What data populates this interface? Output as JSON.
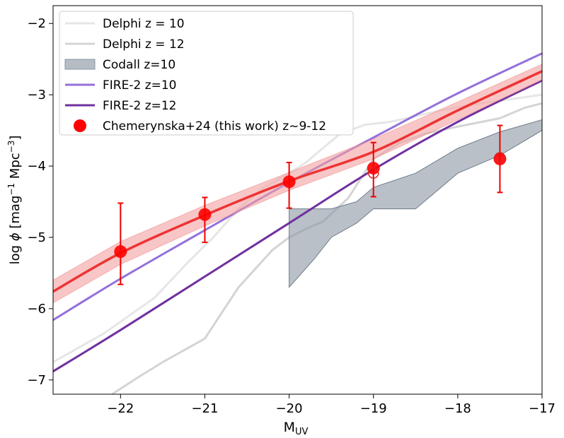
{
  "chart_data": {
    "type": "line",
    "title": "",
    "xlabel": "M",
    "xlabel_sub": "UV",
    "ylabel_prefix": "log ",
    "ylabel_phi": "ϕ",
    "ylabel_open": " [mag",
    "ylabel_sup1": "−1",
    "ylabel_mid": " Mpc",
    "ylabel_sup2": "−3",
    "ylabel_close": "]",
    "xlim": [
      -22.8,
      -17
    ],
    "ylim": [
      -7.2,
      -1.75
    ],
    "xticks": [
      -22,
      -21,
      -20,
      -19,
      -18,
      -17
    ],
    "xtick_labels": [
      "−22",
      "−21",
      "−20",
      "−19",
      "−18",
      "−17"
    ],
    "yticks": [
      -7,
      -6,
      -5,
      -4,
      -3,
      -2
    ],
    "ytick_labels": [
      "−7",
      "−6",
      "−5",
      "−4",
      "−3",
      "−2"
    ],
    "legend_position": "top-left",
    "series": [
      {
        "name": "Delphi z = 10",
        "kind": "line",
        "color": "#e6e6e6",
        "width": 3,
        "x": [
          -22.8,
          -22.2,
          -21.6,
          -21.2,
          -20.9,
          -20.6,
          -20.3,
          -20.0,
          -19.8,
          -19.6,
          -19.4,
          -19.1,
          -18.8,
          -18.5,
          -18.2,
          -17.9,
          -17.6,
          -17.3,
          -17.0
        ],
        "y": [
          -6.75,
          -6.35,
          -5.85,
          -5.35,
          -5.0,
          -4.6,
          -4.3,
          -4.1,
          -3.95,
          -3.75,
          -3.55,
          -3.42,
          -3.38,
          -3.3,
          -3.22,
          -3.15,
          -3.1,
          -3.05,
          -3.0
        ]
      },
      {
        "name": "Delphi z = 12",
        "kind": "line",
        "color": "#d4d4d4",
        "width": 3,
        "x": [
          -22.1,
          -21.8,
          -21.5,
          -21.0,
          -20.6,
          -20.2,
          -20.0,
          -19.8,
          -19.6,
          -19.3,
          -19.0,
          -18.7,
          -18.4,
          -18.1,
          -17.8,
          -17.5,
          -17.2,
          -17.0
        ],
        "y": [
          -7.2,
          -6.97,
          -6.75,
          -6.42,
          -5.7,
          -5.18,
          -5.0,
          -4.88,
          -4.78,
          -4.45,
          -3.9,
          -3.68,
          -3.55,
          -3.47,
          -3.4,
          -3.33,
          -3.18,
          -3.12
        ]
      },
      {
        "name": "Codall z=10",
        "kind": "band",
        "color": "#8a96a3",
        "opacity": 0.6,
        "x": [
          -20.0,
          -19.7,
          -19.5,
          -19.2,
          -19.0,
          -18.5,
          -18.0,
          -17.5,
          -17.0
        ],
        "upper": [
          -4.6,
          -4.6,
          -4.6,
          -4.5,
          -4.3,
          -4.1,
          -3.75,
          -3.52,
          -3.35
        ],
        "lower": [
          -5.7,
          -5.3,
          -5.0,
          -4.8,
          -4.6,
          -4.6,
          -4.1,
          -3.85,
          -3.5
        ]
      },
      {
        "name": "FIRE-2 z=10",
        "kind": "curve",
        "color": "#9370db",
        "width": 3,
        "x": [
          -22.8,
          -22.0,
          -21.0,
          -20.0,
          -19.0,
          -18.0,
          -17.0
        ],
        "y": [
          -6.16,
          -5.58,
          -4.9,
          -4.23,
          -3.6,
          -2.98,
          -2.42
        ]
      },
      {
        "name": "FIRE-2 z=12",
        "kind": "curve",
        "color": "#7030a0",
        "width": 3,
        "x": [
          -22.8,
          -22.0,
          -21.0,
          -20.0,
          -19.0,
          -18.0,
          -17.0
        ],
        "y": [
          -6.88,
          -6.3,
          -5.55,
          -4.8,
          -4.05,
          -3.38,
          -2.8
        ]
      },
      {
        "name": "Chemerynska+24 fit",
        "kind": "fit",
        "color": "#ee3333",
        "band_color": "#f4a0a0",
        "width": 3.5,
        "x": [
          -22.8,
          -22.0,
          -21.0,
          -20.0,
          -19.0,
          -18.0,
          -17.0
        ],
        "y": [
          -5.76,
          -5.22,
          -4.69,
          -4.21,
          -3.8,
          -3.22,
          -2.67
        ],
        "upper": [
          -5.6,
          -5.06,
          -4.55,
          -4.09,
          -3.62,
          -3.1,
          -2.57
        ],
        "lower": [
          -5.92,
          -5.38,
          -4.84,
          -4.34,
          -3.9,
          -3.35,
          -2.79
        ]
      },
      {
        "name": "Chemerynska+24 (this work) z~9-12",
        "kind": "points",
        "color": "#ff0000",
        "ecolor": "#ee0000",
        "x": [
          -22.0,
          -21.0,
          -20.0,
          -19.0,
          -17.5
        ],
        "y": [
          -5.2,
          -4.68,
          -4.22,
          -4.03,
          -3.9
        ],
        "yerr_low": [
          0.46,
          0.39,
          0.37,
          0.4,
          0.47
        ],
        "yerr_high": [
          0.68,
          0.24,
          0.27,
          0.36,
          0.47
        ]
      }
    ],
    "open_points": {
      "x": [
        -19.0,
        -17.5
      ],
      "y": [
        -4.1,
        -3.88
      ]
    },
    "legend": [
      {
        "label": "Delphi z = 10",
        "kind": "line",
        "color": "#e6e6e6"
      },
      {
        "label": "Delphi z = 12",
        "kind": "line",
        "color": "#d4d4d4"
      },
      {
        "label": "Codall z=10",
        "kind": "patch",
        "color": "#b5bcc4"
      },
      {
        "label": "FIRE-2 z=10",
        "kind": "line",
        "color": "#9370db"
      },
      {
        "label": "FIRE-2 z=12",
        "kind": "line",
        "color": "#7030a0"
      },
      {
        "label": "Chemerynska+24 (this work) z~9-12",
        "kind": "marker",
        "color": "#ff0000"
      }
    ]
  }
}
